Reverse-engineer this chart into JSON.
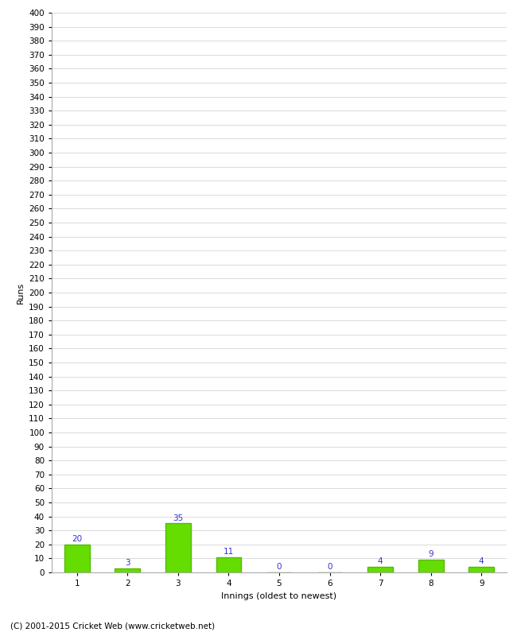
{
  "innings": [
    1,
    2,
    3,
    4,
    5,
    6,
    7,
    8,
    9
  ],
  "runs": [
    20,
    3,
    35,
    11,
    0,
    0,
    4,
    9,
    4
  ],
  "bar_color": "#66dd00",
  "bar_edge_color": "#55bb00",
  "label_color": "#3333cc",
  "xlabel": "Innings (oldest to newest)",
  "ylabel": "Runs",
  "ylim": [
    0,
    400
  ],
  "footer": "(C) 2001-2015 Cricket Web (www.cricketweb.net)",
  "bg_color": "#ffffff",
  "grid_color": "#cccccc",
  "label_fontsize": 7.5,
  "axis_tick_fontsize": 7.5,
  "axis_label_fontsize": 8,
  "footer_fontsize": 7.5
}
